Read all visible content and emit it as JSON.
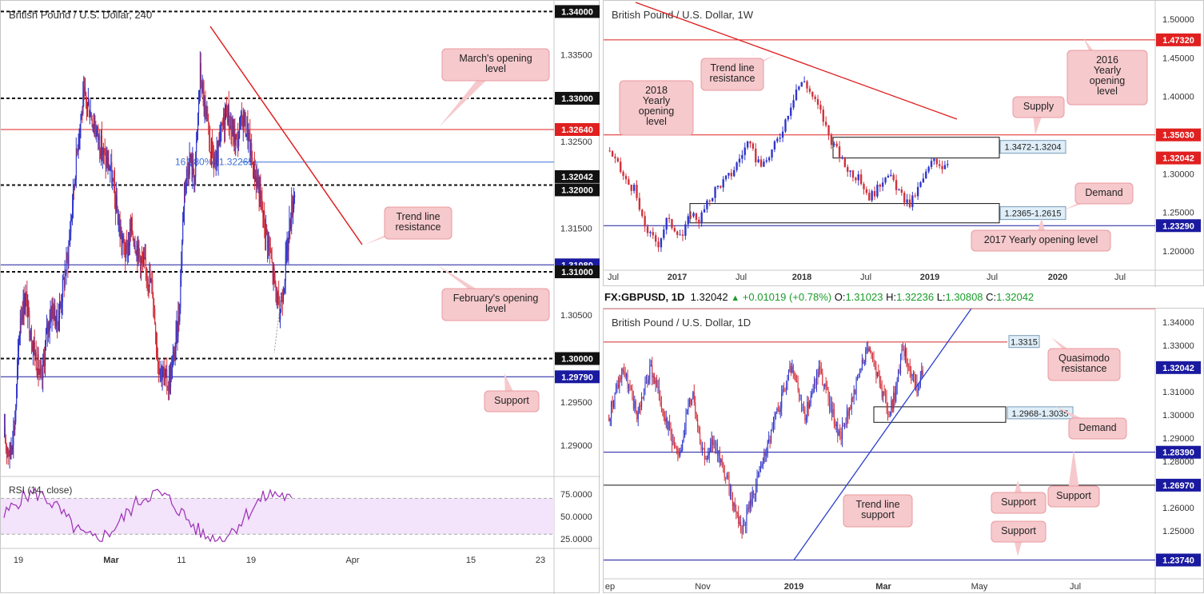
{
  "colors": {
    "bull": "#2f35c9",
    "bear": "#d2303a",
    "red": "#e02020",
    "blue": "#1a1aa0",
    "callout": "#f6c9cc",
    "callout_border": "#e99aa0",
    "rsi": "#9b2fb5",
    "rsi_fill": "#f3e3fb"
  },
  "header": {
    "symbol": "FX:GBPUSD, 1D",
    "price": "1.32042",
    "arrow": "▲",
    "change": "+0.01019 (+0.78%)",
    "o_label": "O:",
    "o": "1.31023",
    "h_label": "H:",
    "h": "1.32236",
    "l_label": "L:",
    "l": "1.30808",
    "c_label": "C:",
    "c": "1.32042"
  },
  "chart_data": [
    {
      "type": "candlestick",
      "title": "British Pound / U.S. Dollar, 240",
      "ylim": [
        1.2865,
        1.3405
      ],
      "x_ticks": [
        "19",
        "Mar",
        "11",
        "19",
        "Apr",
        "15",
        "23"
      ],
      "y_ticks": [
        "1.33500",
        "1.32500",
        "1.31500",
        "1.30500",
        "1.29500",
        "1.29000"
      ],
      "price_tags": [
        {
          "label": "1.34000",
          "style": "black"
        },
        {
          "label": "1.33000",
          "style": "black"
        },
        {
          "label": "1.32640",
          "style": "red"
        },
        {
          "label": "1.32042",
          "style": "dark"
        },
        {
          "label": "1.32000",
          "style": "black"
        },
        {
          "label": "1.31080",
          "style": "blue"
        },
        {
          "label": "1.31000",
          "style": "black"
        },
        {
          "label": "1.30000",
          "style": "black"
        },
        {
          "label": "1.29790",
          "style": "blue"
        }
      ],
      "levels": [
        {
          "value": 1.34,
          "kind": "round"
        },
        {
          "value": 1.33,
          "kind": "round"
        },
        {
          "value": 1.3264,
          "kind": "red"
        },
        {
          "value": 1.32265,
          "kind": "fib"
        },
        {
          "value": 1.32,
          "kind": "round"
        },
        {
          "value": 1.3108,
          "kind": "blue"
        },
        {
          "value": 1.31,
          "kind": "round"
        },
        {
          "value": 1.3,
          "kind": "round"
        },
        {
          "value": 1.2979,
          "kind": "blue"
        }
      ],
      "fib_label": "161.80% (1.32265)",
      "callouts": [
        "March's opening level",
        "Trend line resistance",
        "February's opening level",
        "Support"
      ],
      "rsi": {
        "label": "RSI (14, close)",
        "y_ticks": [
          "75.0000",
          "50.0000",
          "25.0000"
        ],
        "upper": 70,
        "lower": 30
      },
      "close_path": [
        1.291,
        1.289,
        1.293,
        1.305,
        1.307,
        1.303,
        1.3,
        1.297,
        1.303,
        1.306,
        1.304,
        1.308,
        1.312,
        1.319,
        1.326,
        1.33,
        1.329,
        1.327,
        1.325,
        1.323,
        1.322,
        1.318,
        1.314,
        1.312,
        1.315,
        1.313,
        1.311,
        1.31,
        1.308,
        1.3,
        1.298,
        1.297,
        1.3,
        1.305,
        1.32,
        1.323,
        1.321,
        1.333,
        1.328,
        1.324,
        1.322,
        1.326,
        1.329,
        1.326,
        1.325,
        1.328,
        1.326,
        1.322,
        1.32,
        1.316,
        1.313,
        1.309,
        1.305,
        1.31,
        1.316,
        1.32
      ]
    },
    {
      "type": "candlestick",
      "title": "British Pound / U.S. Dollar, 1W",
      "ylim": [
        1.1825,
        1.5175
      ],
      "x_ticks": [
        "Jul",
        "2017",
        "Jul",
        "2018",
        "Jul",
        "2019",
        "Jul",
        "2020",
        "Jul"
      ],
      "y_ticks": [
        "1.50000",
        "1.45000",
        "1.40000",
        "1.30000",
        "1.25000",
        "1.20000"
      ],
      "price_tags": [
        {
          "label": "1.47320",
          "style": "red"
        },
        {
          "label": "1.35030",
          "style": "red"
        },
        {
          "label": "1.32042",
          "style": "red"
        },
        {
          "label": "1.23290",
          "style": "blue"
        }
      ],
      "zones": [
        {
          "label": "1.3472-1.3204",
          "lo": 1.3204,
          "hi": 1.3472
        },
        {
          "label": "1.2365-1.2615",
          "lo": 1.2365,
          "hi": 1.2615
        }
      ],
      "callouts": [
        "Trend line resistance",
        "2018 Yearly opening level",
        "2016 Yearly opening level",
        "Supply",
        "Demand",
        "2017 Yearly opening level"
      ],
      "close_path": [
        1.33,
        1.31,
        1.29,
        1.28,
        1.24,
        1.22,
        1.21,
        1.24,
        1.23,
        1.22,
        1.25,
        1.24,
        1.26,
        1.28,
        1.29,
        1.3,
        1.32,
        1.34,
        1.32,
        1.31,
        1.33,
        1.35,
        1.38,
        1.41,
        1.42,
        1.4,
        1.38,
        1.35,
        1.33,
        1.31,
        1.3,
        1.29,
        1.27,
        1.28,
        1.3,
        1.29,
        1.27,
        1.26,
        1.28,
        1.3,
        1.32,
        1.31,
        1.32
      ]
    },
    {
      "type": "candlestick",
      "title": "British Pound / U.S. Dollar, 1D",
      "ylim": [
        1.2355,
        1.3445
      ],
      "x_ticks": [
        "ep",
        "Nov",
        "2019",
        "Mar",
        "May",
        "Jul"
      ],
      "y_ticks": [
        "1.34000",
        "1.33000",
        "1.31000",
        "1.30000",
        "1.29000",
        "1.28000",
        "1.26000",
        "1.25000"
      ],
      "price_tags": [
        {
          "label": "1.32042",
          "style": "blue"
        },
        {
          "label": "1.28390",
          "style": "blue"
        },
        {
          "label": "1.26970",
          "style": "blue"
        },
        {
          "label": "1.23740",
          "style": "blue"
        }
      ],
      "labels": [
        "1.3315"
      ],
      "zones": [
        {
          "label": "1.2968-1.3035",
          "lo": 1.2968,
          "hi": 1.3035
        }
      ],
      "callouts": [
        "Quasimodo resistance",
        "Demand",
        "Support",
        "Support",
        "Support",
        "Trend line support"
      ],
      "close_path": [
        1.3,
        1.31,
        1.32,
        1.31,
        1.3,
        1.31,
        1.32,
        1.31,
        1.3,
        1.29,
        1.28,
        1.3,
        1.31,
        1.29,
        1.28,
        1.29,
        1.28,
        1.27,
        1.26,
        1.25,
        1.26,
        1.27,
        1.28,
        1.29,
        1.3,
        1.31,
        1.32,
        1.31,
        1.3,
        1.31,
        1.32,
        1.31,
        1.3,
        1.29,
        1.3,
        1.31,
        1.32,
        1.33,
        1.32,
        1.31,
        1.3,
        1.31,
        1.33,
        1.32,
        1.31,
        1.32
      ]
    }
  ]
}
